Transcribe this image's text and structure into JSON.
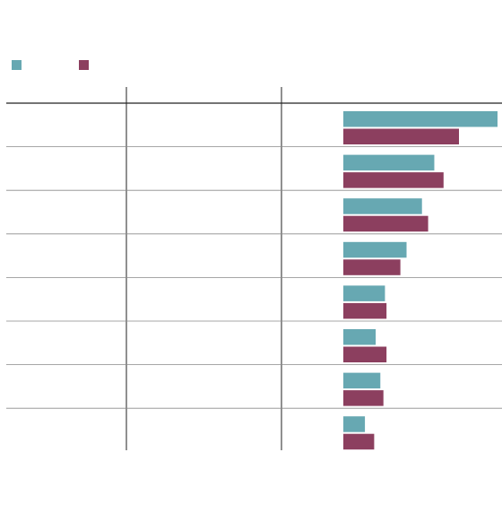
{
  "colors": {
    "series_1": "#67a8b2",
    "series_2": "#8c3f5f",
    "rule": "#222222",
    "row_divider": "#8a8a8a",
    "background": "#ffffff"
  },
  "chart_data": {
    "type": "bar",
    "orientation": "horizontal",
    "grouped": true,
    "legend_position": "top-left",
    "grid": false,
    "table_columns": 3,
    "rows": 8,
    "value_axis_visible": false,
    "series": [
      {
        "color_key": "series_1",
        "values": [
          100,
          59,
          51,
          41,
          27,
          21,
          24,
          14
        ]
      },
      {
        "color_key": "series_2",
        "values": [
          75,
          65,
          55,
          37,
          28,
          28,
          26,
          20
        ]
      }
    ],
    "xlim": [
      0,
      100
    ]
  }
}
